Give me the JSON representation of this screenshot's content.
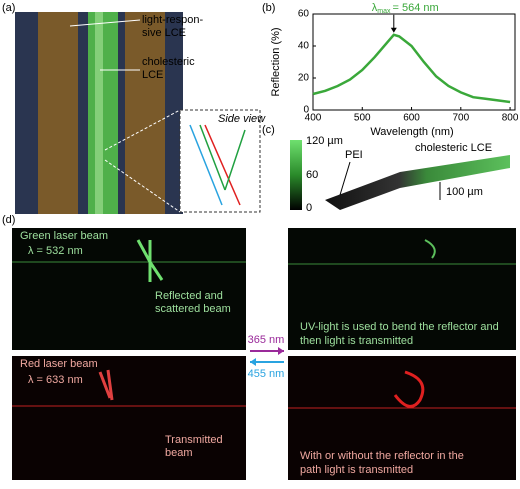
{
  "chart_data": {
    "type": "line",
    "panel_label": "(b)",
    "xlabel": "Wavelength (nm)",
    "ylabel": "Reflection (%)",
    "x": [
      400,
      425,
      450,
      475,
      500,
      525,
      550,
      564,
      575,
      600,
      625,
      650,
      675,
      700,
      725,
      750,
      775,
      800
    ],
    "series": [
      {
        "name": "reflection",
        "color": "#3aa83a",
        "values": [
          10,
          12,
          15,
          19,
          25,
          33,
          42,
          47,
          46,
          40,
          30,
          21,
          15,
          11,
          8,
          7,
          6,
          5
        ]
      }
    ],
    "annotation": {
      "symbol": "λ",
      "subscript": "max",
      "text": "= 564 nm"
    },
    "xlim": [
      400,
      810
    ],
    "xticks": [
      400,
      500,
      600,
      700,
      800
    ],
    "ylim": [
      0,
      60
    ],
    "yticks": [
      0,
      20,
      40,
      60
    ]
  },
  "panels": {
    "a": {
      "label": "(a)",
      "callouts": [
        "light-respon-",
        "sive LCE",
        "cholesteric",
        "LCE"
      ],
      "inset": "Side view"
    },
    "c": {
      "label": "(c)",
      "colorbar": [
        "120 µm",
        "60",
        "0"
      ],
      "pei": "PEI",
      "lce": "cholesteric LCE",
      "scale": "100 µm"
    },
    "d": {
      "label": "(d)",
      "green_title": "Green laser beam",
      "green_wavelength": "λ = 532 nm",
      "reflected": [
        "Reflected and",
        "scattered beam"
      ],
      "uv_text": [
        "UV-light is used to bend the reflector and",
        "then light is transmitted"
      ],
      "red_title": "Red laser beam",
      "red_wavelength": "λ = 633 nm",
      "transmitted": [
        "Transmitted",
        "beam"
      ],
      "with_text": [
        "With or without the reflector in the",
        "path light is transmitted"
      ],
      "uv_arrow": "365 nm",
      "blue_arrow": "455 nm"
    }
  }
}
